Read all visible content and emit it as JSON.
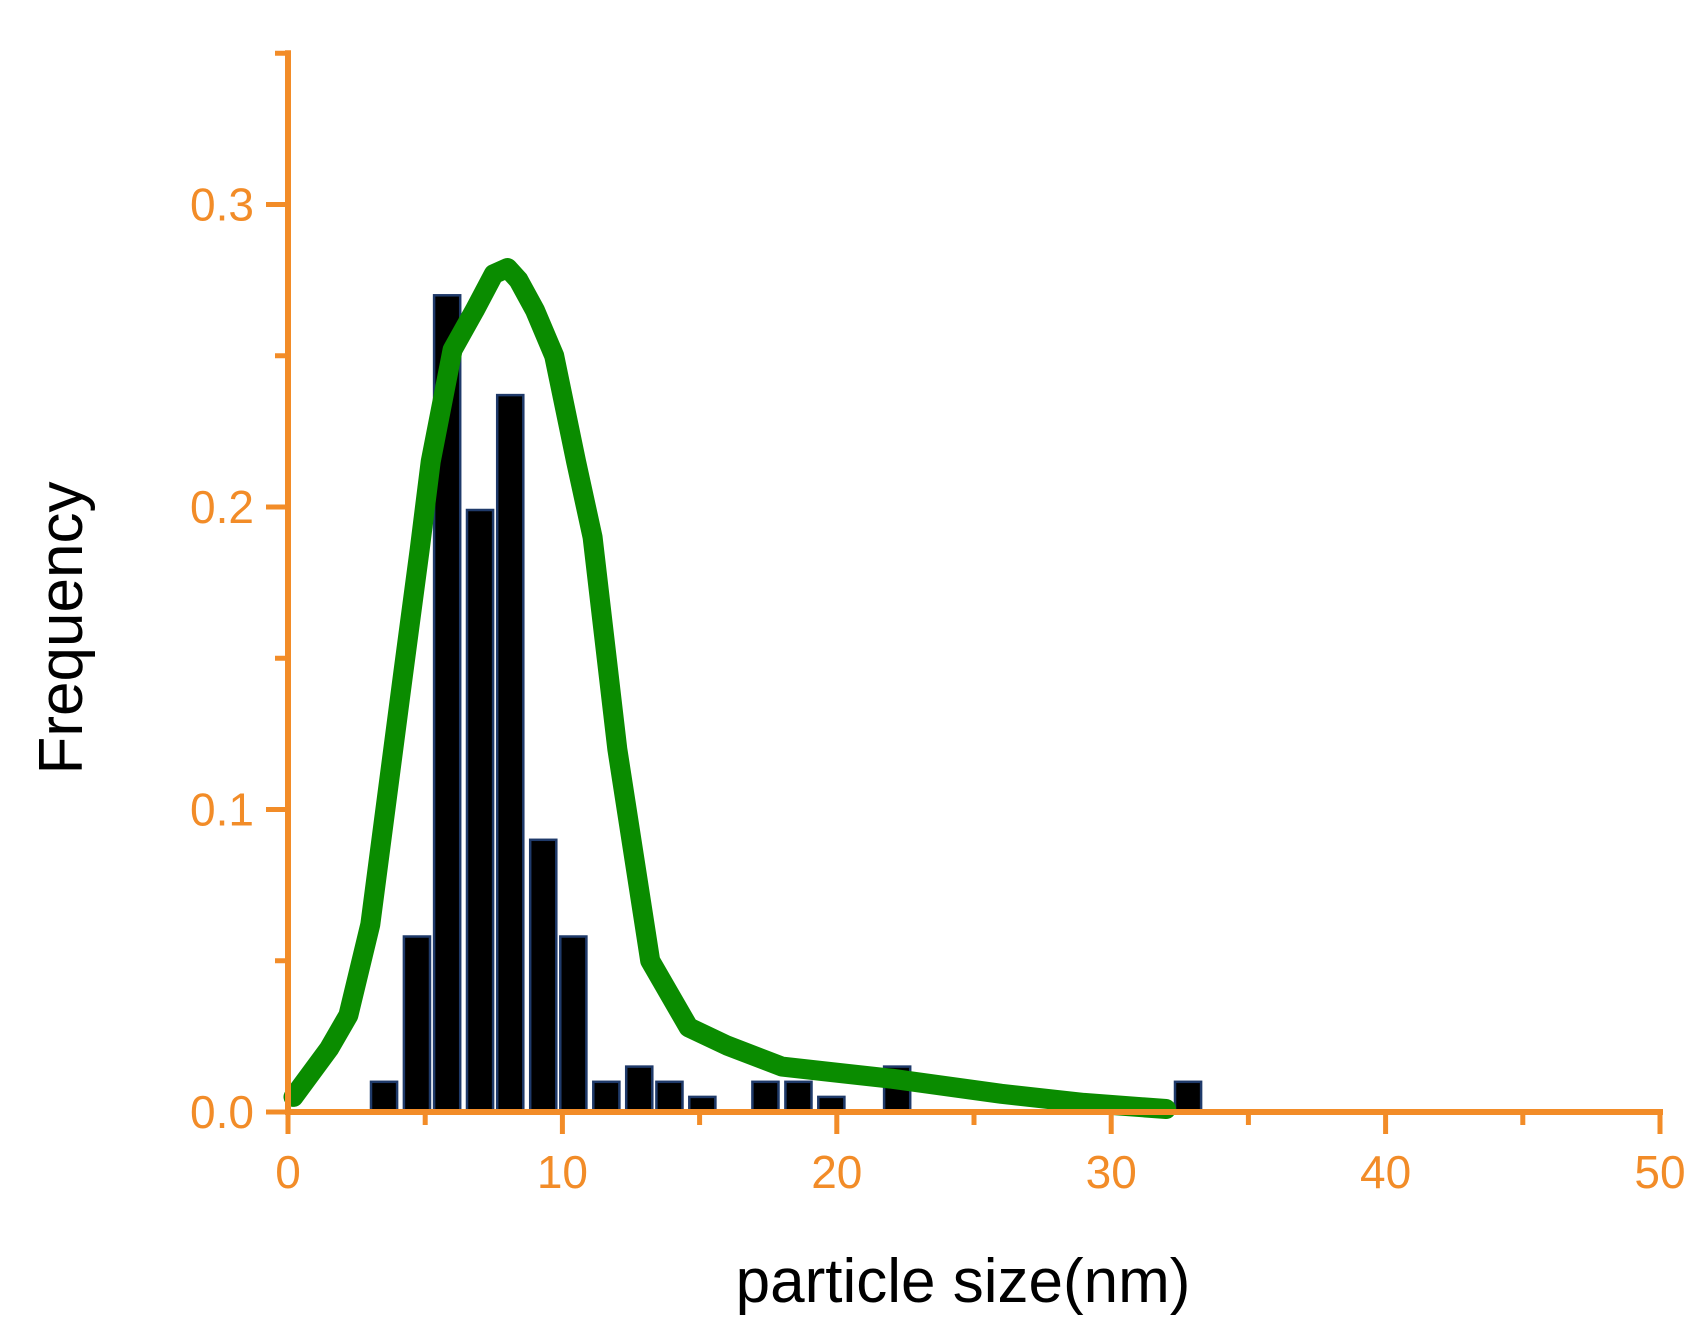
{
  "chart_data": {
    "type": "bar",
    "title": "",
    "xlabel": "particle size(nm)",
    "ylabel": "Frequency",
    "xlim": [
      0,
      50
    ],
    "ylim": [
      0,
      0.35
    ],
    "x_ticks": [
      0,
      10,
      20,
      30,
      40,
      50
    ],
    "y_ticks": [
      0.0,
      0.1,
      0.2,
      0.3
    ],
    "x_tick_labels": [
      "0",
      "10",
      "20",
      "30",
      "40",
      "50"
    ],
    "y_tick_labels": [
      "0.0",
      "0.1",
      "0.2",
      "0.3"
    ],
    "grid": false,
    "bar_width": 0.95,
    "bars": {
      "x": [
        3.5,
        4.7,
        5.8,
        7.0,
        8.1,
        9.3,
        10.4,
        11.6,
        12.8,
        13.9,
        15.1,
        17.4,
        18.6,
        19.8,
        22.2,
        32.8
      ],
      "values": [
        0.01,
        0.058,
        0.27,
        0.199,
        0.237,
        0.09,
        0.058,
        0.01,
        0.015,
        0.01,
        0.005,
        0.01,
        0.01,
        0.005,
        0.015,
        0.01
      ]
    },
    "curve": {
      "x": [
        0.2,
        1.5,
        2.2,
        3.0,
        4.2,
        4.8,
        5.2,
        6.0,
        6.8,
        7.5,
        8.0,
        8.4,
        9.0,
        9.7,
        10.5,
        11.1,
        12.0,
        13.2,
        14.6,
        16.0,
        18.0,
        20.0,
        22.0,
        26.0,
        29.0,
        32.0
      ],
      "values": [
        0.005,
        0.021,
        0.032,
        0.062,
        0.145,
        0.186,
        0.215,
        0.252,
        0.265,
        0.277,
        0.279,
        0.275,
        0.265,
        0.25,
        0.215,
        0.19,
        0.12,
        0.05,
        0.028,
        0.022,
        0.015,
        0.013,
        0.011,
        0.006,
        0.003,
        0.001
      ]
    },
    "colors": {
      "axis": "#f28c28",
      "bar_fill": "#000000",
      "bar_edge": "#1f3a6a",
      "curve": "#0a8c00"
    }
  }
}
